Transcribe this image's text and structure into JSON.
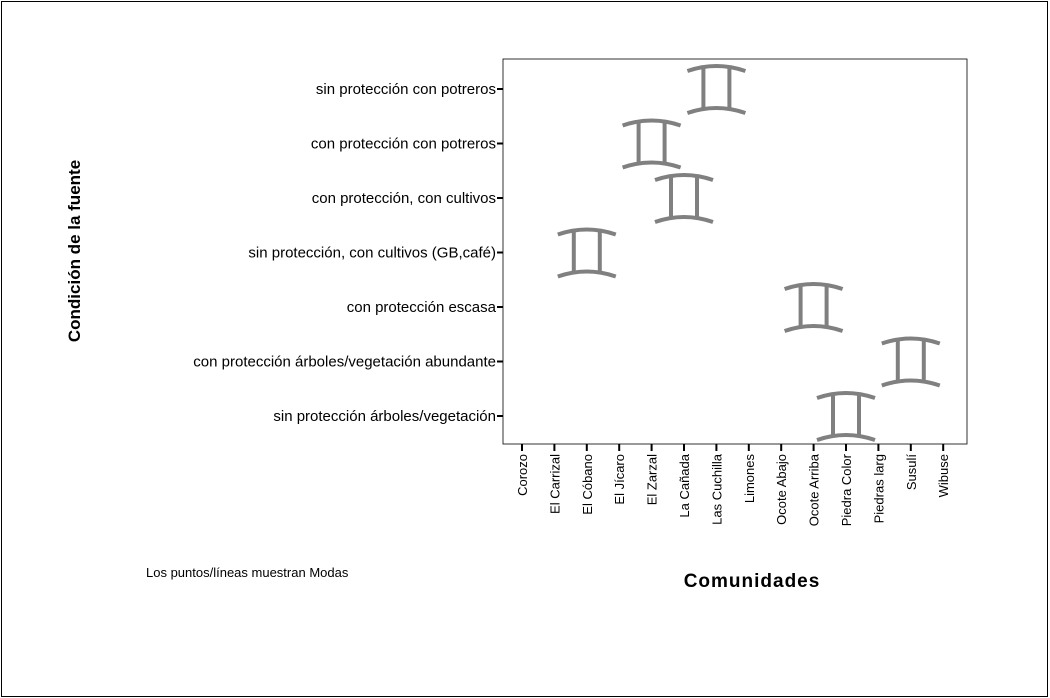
{
  "chart_data": {
    "type": "scatter",
    "marker": "I-beam",
    "title": "",
    "xlabel": "Comunidades",
    "ylabel": "Condición de la fuente",
    "note": "Los puntos/líneas muestran Modas",
    "categories": [
      "Corozo",
      "El Carrizal",
      "El Cóbano",
      "El Jícaro",
      "El Zarzal",
      "La Cañada",
      "Las Cuchilla",
      "Limones",
      "Ocote Abajo",
      "Ocote Arriba",
      "Piedra Color",
      "Piedras larg",
      "Susulí",
      "Wibuse"
    ],
    "y_categories": [
      "sin protección árboles/vegetación",
      "con protección árboles/vegetación abundante",
      "con protección escasa",
      "sin protección, con cultivos (GB,café)",
      "con protección, con cultivos",
      "con protección con potreros",
      "sin protección con potreros"
    ],
    "points": [
      {
        "x": "El Cóbano",
        "y": "sin protección, con cultivos (GB,café)"
      },
      {
        "x": "El Zarzal",
        "y": "con protección con potreros"
      },
      {
        "x": "La Cañada",
        "y": "con protección, con cultivos"
      },
      {
        "x": "Las Cuchilla",
        "y": "sin protección con potreros"
      },
      {
        "x": "Ocote Arriba",
        "y": "con protección escasa"
      },
      {
        "x": "Piedra Color",
        "y": "sin protección árboles/vegetación"
      },
      {
        "x": "Susulí",
        "y": "con protección árboles/vegetación abundante"
      }
    ],
    "grid": false,
    "legend": "none",
    "marker_color": "#808080"
  }
}
